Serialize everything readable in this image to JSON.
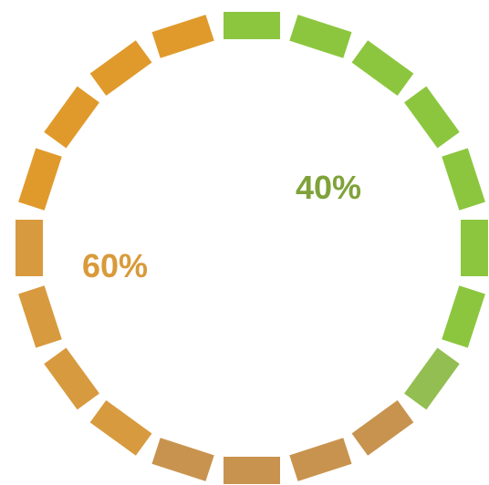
{
  "chart_data": {
    "type": "pie",
    "style": "dashed-ring",
    "title": "",
    "segment_count": 20,
    "slices": [
      {
        "value": 40,
        "label": "40%",
        "color": "#8cc63f",
        "label_color": "#7fa23a"
      },
      {
        "value": 60,
        "label": "60%",
        "color": "#e09a2b",
        "label_color": "#d99a3a"
      }
    ],
    "transition_colors": [
      "#8cc63f",
      "#93be52",
      "#c8934e",
      "#c8934e",
      "#c8934e",
      "#c8934e",
      "#d89a3e",
      "#d89a3e",
      "#d99a3a",
      "#e09a2b"
    ]
  }
}
